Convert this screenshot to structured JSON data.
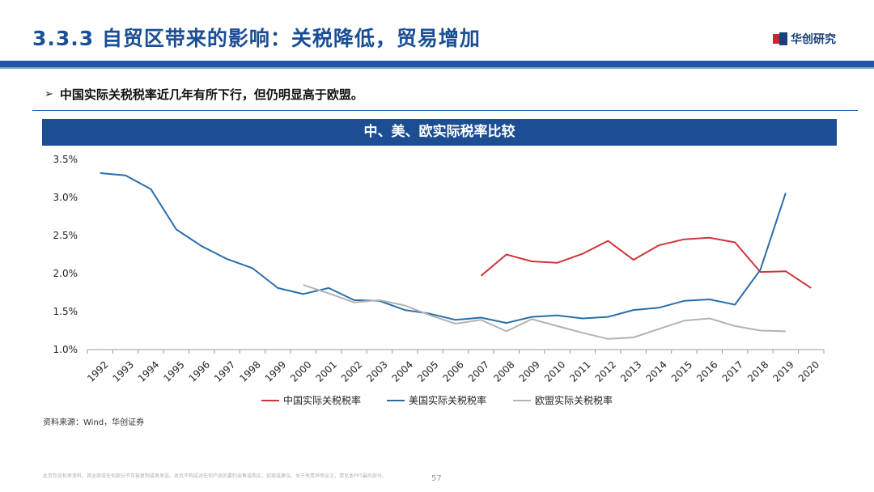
{
  "header": {
    "title": "3.3.3 自贸区带来的影响：关税降低，贸易增加",
    "logo_text": "华创研究"
  },
  "bullet": {
    "arrow": "➢",
    "text": "中国实际关税税率近几年有所下行，但仍明显高于欧盟。"
  },
  "chart_banner": "中、美、欧实际税率比较",
  "chart_data": {
    "type": "line",
    "title": "中、美、欧实际税率比较",
    "categories": [
      "1992",
      "1993",
      "1994",
      "1995",
      "1996",
      "1997",
      "1998",
      "1999",
      "2000",
      "2001",
      "2002",
      "2003",
      "2004",
      "2005",
      "2006",
      "2007",
      "2008",
      "2009",
      "2010",
      "2011",
      "2012",
      "2013",
      "2014",
      "2015",
      "2016",
      "2017",
      "2018",
      "2019",
      "2020"
    ],
    "ylim": [
      1.0,
      3.5
    ],
    "yticks": [
      "1.0%",
      "1.5%",
      "2.0%",
      "2.5%",
      "3.0%",
      "3.5%"
    ],
    "ytick_values": [
      1.0,
      1.5,
      2.0,
      2.5,
      3.0,
      3.5
    ],
    "series": [
      {
        "name": "中国实际关税税率",
        "color": "#d1333a",
        "values": [
          null,
          null,
          null,
          null,
          null,
          null,
          null,
          null,
          null,
          null,
          null,
          null,
          null,
          null,
          null,
          1.97,
          2.25,
          2.16,
          2.14,
          2.26,
          2.43,
          2.18,
          2.37,
          2.45,
          2.47,
          2.41,
          2.02,
          2.03,
          1.81
        ]
      },
      {
        "name": "美国实际关税税率",
        "color": "#2a6ea8",
        "values": [
          3.32,
          3.29,
          3.11,
          2.58,
          2.36,
          2.19,
          2.07,
          1.81,
          1.73,
          1.81,
          1.65,
          1.64,
          1.52,
          1.47,
          1.39,
          1.42,
          1.35,
          1.43,
          1.45,
          1.41,
          1.43,
          1.52,
          1.55,
          1.64,
          1.66,
          1.59,
          2.05,
          3.06,
          null
        ]
      },
      {
        "name": "欧盟实际关税税率",
        "color": "#b3b3b3",
        "values": [
          null,
          null,
          null,
          null,
          null,
          null,
          null,
          null,
          1.85,
          1.74,
          1.62,
          1.65,
          1.58,
          1.45,
          1.34,
          1.39,
          1.24,
          1.4,
          1.31,
          1.22,
          1.14,
          1.16,
          1.27,
          1.38,
          1.41,
          1.31,
          1.25,
          1.24,
          null
        ]
      }
    ],
    "legend_position": "bottom"
  },
  "source": "资料来源：Wind，华创证券",
  "footer_note": "此页包含机密资料，其全部或任何部分不可被复制或再发送。本页不构成对任何产品的要约出售或购买，招揽或建议。关于免责声明全文，请见本PPT最后部分。",
  "page_number": "57",
  "colors": {
    "brand": "#1f57a5",
    "banner": "#1d4e93"
  }
}
